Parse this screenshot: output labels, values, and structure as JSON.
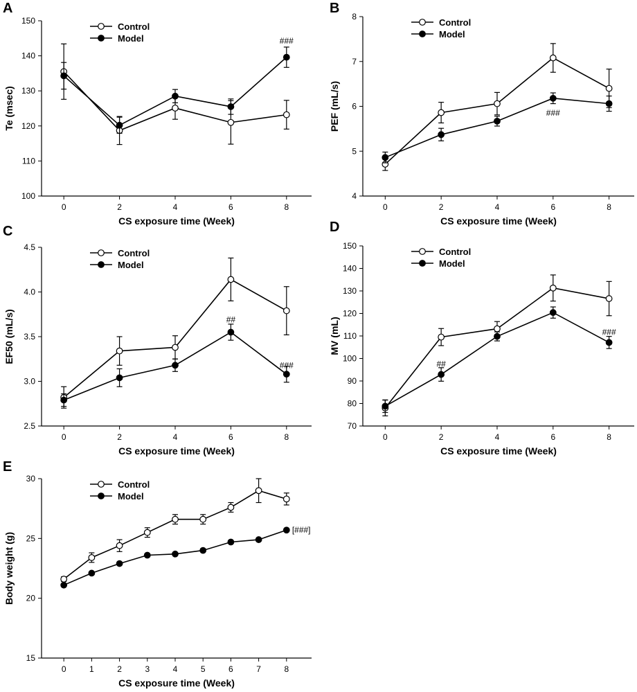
{
  "chart_data": [
    {
      "panel": "A",
      "type": "line",
      "title": "",
      "xlabel": "CS exposure time (Week)",
      "ylabel": "Te (msec)",
      "xlim": [
        -0.8,
        8.9
      ],
      "ylim": [
        100,
        150
      ],
      "xticks": [
        0,
        2,
        4,
        6,
        8
      ],
      "yticks": [
        100,
        110,
        120,
        130,
        140,
        150
      ],
      "legend_position": "top-left",
      "x": [
        0,
        2,
        4,
        6,
        8
      ],
      "series": [
        {
          "name": "Control",
          "marker": "open",
          "values": [
            135.5,
            118.7,
            125.1,
            121.0,
            123.2
          ],
          "errors": [
            7.9,
            4.0,
            3.2,
            6.2,
            4.1
          ]
        },
        {
          "name": "Model",
          "marker": "filled",
          "values": [
            134.3,
            120.2,
            128.5,
            125.5,
            139.6
          ],
          "errors": [
            3.8,
            2.3,
            1.9,
            2.2,
            2.9
          ]
        }
      ],
      "annotations": [
        {
          "text": "###",
          "x": 8,
          "y": 144.3
        }
      ]
    },
    {
      "panel": "B",
      "type": "line",
      "title": "",
      "xlabel": "CS exposure time (Week)",
      "ylabel": "PEF (mL/s)",
      "xlim": [
        -0.8,
        8.9
      ],
      "ylim": [
        4,
        8
      ],
      "xticks": [
        0,
        2,
        4,
        6,
        8
      ],
      "yticks": [
        4,
        5,
        6,
        7,
        8
      ],
      "legend_position": "top-left",
      "x": [
        0,
        2,
        4,
        6,
        8
      ],
      "series": [
        {
          "name": "Control",
          "marker": "open",
          "values": [
            4.71,
            5.86,
            6.06,
            7.08,
            6.4
          ],
          "errors": [
            0.14,
            0.23,
            0.25,
            0.32,
            0.43
          ]
        },
        {
          "name": "Model",
          "marker": "filled",
          "values": [
            4.86,
            5.37,
            5.67,
            6.18,
            6.06
          ],
          "errors": [
            0.12,
            0.14,
            0.11,
            0.12,
            0.17
          ]
        }
      ],
      "annotations": [
        {
          "text": "###",
          "x": 6,
          "y": 5.85
        }
      ]
    },
    {
      "panel": "C",
      "type": "line",
      "title": "",
      "xlabel": "CS exposure time (Week)",
      "ylabel": "EF50 (mL/s)",
      "xlim": [
        -0.8,
        8.9
      ],
      "ylim": [
        2.5,
        4.5
      ],
      "xticks": [
        0,
        2,
        4,
        6,
        8
      ],
      "yticks": [
        2.5,
        3.0,
        3.5,
        4.0,
        4.5
      ],
      "legend_position": "top-left",
      "x": [
        0,
        2,
        4,
        6,
        8
      ],
      "series": [
        {
          "name": "Control",
          "marker": "open",
          "values": [
            2.82,
            3.34,
            3.38,
            4.14,
            3.79
          ],
          "errors": [
            0.12,
            0.16,
            0.13,
            0.24,
            0.27
          ]
        },
        {
          "name": "Model",
          "marker": "filled",
          "values": [
            2.79,
            3.04,
            3.18,
            3.55,
            3.08
          ],
          "errors": [
            0.07,
            0.1,
            0.07,
            0.09,
            0.09
          ]
        }
      ],
      "annotations": [
        {
          "text": "##",
          "x": 6,
          "y": 3.69
        },
        {
          "text": "###",
          "x": 8,
          "y": 3.18
        }
      ]
    },
    {
      "panel": "D",
      "type": "line",
      "title": "",
      "xlabel": "CS exposure time (Week)",
      "ylabel": "MV (mL)",
      "xlim": [
        -0.8,
        8.9
      ],
      "ylim": [
        70,
        150
      ],
      "xticks": [
        0,
        2,
        4,
        6,
        8
      ],
      "yticks": [
        70,
        80,
        90,
        100,
        110,
        120,
        130,
        140,
        150
      ],
      "legend_position": "top-left",
      "x": [
        0,
        2,
        4,
        6,
        8
      ],
      "series": [
        {
          "name": "Control",
          "marker": "open",
          "values": [
            78.0,
            109.5,
            113.2,
            131.3,
            126.6
          ],
          "errors": [
            3.5,
            3.8,
            3.2,
            5.8,
            7.6
          ]
        },
        {
          "name": "Model",
          "marker": "filled",
          "values": [
            78.8,
            92.9,
            109.8,
            120.4,
            107.1
          ],
          "errors": [
            2.8,
            3.0,
            2.0,
            2.5,
            2.7
          ]
        }
      ],
      "annotations": [
        {
          "text": "##",
          "x": 2,
          "y": 97.5
        },
        {
          "text": "###",
          "x": 8,
          "y": 111.7
        }
      ]
    },
    {
      "panel": "E",
      "type": "line",
      "title": "",
      "xlabel": "CS exposure time (Week)",
      "ylabel": "Body weight (g)",
      "xlim": [
        -0.8,
        8.9
      ],
      "ylim": [
        15,
        30
      ],
      "xticks": [
        0,
        1,
        2,
        3,
        4,
        5,
        6,
        7,
        8
      ],
      "yticks": [
        15,
        20,
        25,
        30
      ],
      "legend_position": "top-left",
      "x": [
        0,
        1,
        2,
        3,
        4,
        5,
        6,
        7,
        8
      ],
      "series": [
        {
          "name": "Control",
          "marker": "open",
          "values": [
            21.6,
            23.4,
            24.4,
            25.5,
            26.6,
            26.6,
            27.6,
            29.0,
            28.3
          ],
          "errors": [
            0.2,
            0.4,
            0.5,
            0.4,
            0.4,
            0.4,
            0.4,
            1.0,
            0.5
          ]
        },
        {
          "name": "Model",
          "marker": "filled",
          "values": [
            21.1,
            22.1,
            22.9,
            23.6,
            23.7,
            24.0,
            24.7,
            24.9,
            25.7
          ],
          "errors": [
            0.1,
            0.1,
            0.1,
            0.1,
            0.1,
            0.1,
            0.1,
            0.1,
            0.1
          ]
        }
      ],
      "annotations": [
        {
          "text": "[###]",
          "x": 8,
          "y": 25.7
        }
      ]
    }
  ]
}
